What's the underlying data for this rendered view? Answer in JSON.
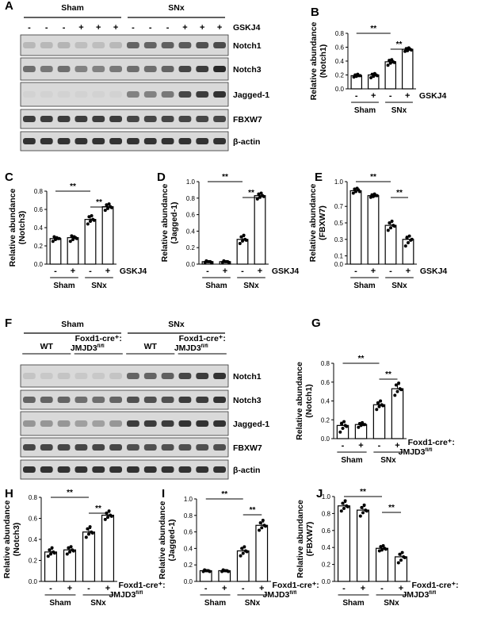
{
  "blot_panels": [
    {
      "letter": "A",
      "groups": [
        {
          "label": "Sham",
          "lanes": 6
        },
        {
          "label": "SNx",
          "lanes": 6
        }
      ],
      "treatment_row": {
        "signs": [
          "-",
          "-",
          "-",
          "+",
          "+",
          "+",
          "-",
          "-",
          "-",
          "+",
          "+",
          "+"
        ],
        "label": "GSKJ4"
      },
      "bands": [
        "Notch1",
        "Notch3",
        "Jagged-1",
        "FBXW7",
        "β-actin"
      ]
    },
    {
      "letter": "F",
      "groups": [
        {
          "label": "Sham",
          "lanes": 6
        },
        {
          "label": "SNx",
          "lanes": 6
        }
      ],
      "subgroups": [
        {
          "label": "WT"
        },
        {
          "label": "Foxd1-cre⁺:",
          "label2": "JMJD3",
          "sup": "fl/fl"
        },
        {
          "label": "WT"
        },
        {
          "label": "Foxd1-cre⁺:",
          "label2": "JMJD3",
          "sup": "fl/fl"
        }
      ],
      "bands": [
        "Notch1",
        "Notch3",
        "Jagged-1",
        "FBXW7",
        "β-actin"
      ]
    }
  ],
  "chart_data": [
    {
      "letter": "B",
      "type": "bar",
      "ylabel": "Relative abundance",
      "ylabel2": "(Notch1)",
      "ylim": [
        0,
        0.8
      ],
      "yticks": [
        "0.0",
        "0.2",
        "0.4",
        "0.6",
        "0.8"
      ],
      "categories": [
        "-",
        "+",
        "-",
        "+"
      ],
      "groups": [
        "Sham",
        "SNx"
      ],
      "treatment": {
        "label": "GSKJ4"
      },
      "values": [
        0.19,
        0.2,
        0.39,
        0.57
      ],
      "points": [
        [
          0.17,
          0.18,
          0.19,
          0.2,
          0.21,
          0.19
        ],
        [
          0.16,
          0.18,
          0.2,
          0.21,
          0.22,
          0.19
        ],
        [
          0.34,
          0.37,
          0.39,
          0.41,
          0.42,
          0.38
        ],
        [
          0.54,
          0.55,
          0.57,
          0.58,
          0.59,
          0.56
        ]
      ],
      "significance": [
        {
          "from": 0,
          "to": 2,
          "label": "**"
        },
        {
          "from": 2,
          "to": 3,
          "label": "**"
        }
      ]
    },
    {
      "letter": "C",
      "type": "bar",
      "ylabel": "Relative abundance",
      "ylabel2": "(Notch3)",
      "ylim": [
        0,
        0.8
      ],
      "yticks": [
        "0.0",
        "0.2",
        "0.4",
        "0.6",
        "0.8"
      ],
      "categories": [
        "-",
        "+",
        "-",
        "+"
      ],
      "groups": [
        "Sham",
        "SNx"
      ],
      "treatment": {
        "label": "GSKJ4"
      },
      "values": [
        0.28,
        0.29,
        0.49,
        0.63
      ],
      "points": [
        [
          0.25,
          0.27,
          0.28,
          0.3,
          0.29,
          0.28
        ],
        [
          0.25,
          0.27,
          0.29,
          0.31,
          0.3,
          0.28
        ],
        [
          0.44,
          0.47,
          0.49,
          0.52,
          0.53,
          0.48
        ],
        [
          0.59,
          0.61,
          0.63,
          0.65,
          0.66,
          0.62
        ]
      ],
      "significance": [
        {
          "from": 0,
          "to": 2,
          "label": "**"
        },
        {
          "from": 2,
          "to": 3,
          "label": "**"
        }
      ]
    },
    {
      "letter": "D",
      "type": "bar",
      "ylabel": "Relative abundance",
      "ylabel2": "(Jagged-1)",
      "ylim": [
        0,
        1.0
      ],
      "yticks": [
        "0.0",
        "0.2",
        "0.4",
        "0.6",
        "0.8",
        "1.0"
      ],
      "categories": [
        "-",
        "+",
        "-",
        "+"
      ],
      "groups": [
        "Sham",
        "SNx"
      ],
      "treatment": {
        "label": "GSKJ4"
      },
      "values": [
        0.03,
        0.03,
        0.3,
        0.83
      ],
      "points": [
        [
          0.02,
          0.03,
          0.03,
          0.04,
          0.03,
          0.02
        ],
        [
          0.02,
          0.03,
          0.03,
          0.04,
          0.03,
          0.02
        ],
        [
          0.25,
          0.28,
          0.3,
          0.33,
          0.35,
          0.29
        ],
        [
          0.79,
          0.81,
          0.83,
          0.85,
          0.86,
          0.82
        ]
      ],
      "significance": [
        {
          "from": 0,
          "to": 2,
          "label": "**"
        },
        {
          "from": 2,
          "to": 3,
          "label": "**"
        }
      ]
    },
    {
      "letter": "E",
      "type": "bar",
      "ylabel": "Relative abundance",
      "ylabel2": "(FBXW7)",
      "ylim": [
        0,
        1.0
      ],
      "yticks": [
        "0.0",
        "0.1",
        "0.3",
        "0.5",
        "0.7",
        "1.0"
      ],
      "yticks_values": [
        0,
        0.1,
        0.3,
        0.5,
        0.7,
        1.0
      ],
      "categories": [
        "-",
        "+",
        "-",
        "+"
      ],
      "groups": [
        "Sham",
        "SNx"
      ],
      "treatment": {
        "label": "GSKJ4"
      },
      "values": [
        0.89,
        0.83,
        0.47,
        0.3
      ],
      "points": [
        [
          0.86,
          0.88,
          0.9,
          0.91,
          0.92,
          0.88
        ],
        [
          0.81,
          0.82,
          0.83,
          0.84,
          0.85,
          0.83
        ],
        [
          0.41,
          0.44,
          0.47,
          0.5,
          0.52,
          0.46
        ],
        [
          0.22,
          0.26,
          0.29,
          0.32,
          0.34,
          0.3
        ]
      ],
      "significance": [
        {
          "from": 0,
          "to": 2,
          "label": "**"
        },
        {
          "from": 2,
          "to": 3,
          "label": "**"
        }
      ]
    },
    {
      "letter": "G",
      "type": "bar",
      "ylabel": "Relative abundance",
      "ylabel2": "(Notch1)",
      "ylim": [
        0,
        0.8
      ],
      "yticks": [
        "0.0",
        "0.2",
        "0.4",
        "0.6",
        "0.8"
      ],
      "categories": [
        "-",
        "+",
        "-",
        "+"
      ],
      "groups": [
        "Sham",
        "SNx"
      ],
      "treatment": {
        "label": "Foxd1-cre⁺:",
        "label2": "JMJD3",
        "sup": "fl/fl"
      },
      "values": [
        0.14,
        0.15,
        0.36,
        0.53
      ],
      "points": [
        [
          0.07,
          0.11,
          0.14,
          0.16,
          0.18,
          0.13
        ],
        [
          0.12,
          0.14,
          0.15,
          0.16,
          0.17,
          0.15
        ],
        [
          0.31,
          0.34,
          0.36,
          0.38,
          0.4,
          0.35
        ],
        [
          0.46,
          0.5,
          0.53,
          0.57,
          0.59,
          0.52
        ]
      ],
      "significance": [
        {
          "from": 0,
          "to": 2,
          "label": "**"
        },
        {
          "from": 2,
          "to": 3,
          "label": "**"
        }
      ]
    },
    {
      "letter": "H",
      "type": "bar",
      "ylabel": "Relative abundance",
      "ylabel2": "(Notch3)",
      "ylim": [
        0,
        0.8
      ],
      "yticks": [
        "0.0",
        "0.2",
        "0.4",
        "0.6",
        "0.8"
      ],
      "categories": [
        "-",
        "+",
        "-",
        "+"
      ],
      "groups": [
        "Sham",
        "SNx"
      ],
      "treatment": {
        "label": "Foxd1-cre⁺:",
        "label2": "JMJD3",
        "sup": "fl/fl"
      },
      "values": [
        0.28,
        0.3,
        0.47,
        0.63
      ],
      "points": [
        [
          0.24,
          0.26,
          0.28,
          0.3,
          0.32,
          0.27
        ],
        [
          0.26,
          0.28,
          0.3,
          0.32,
          0.33,
          0.29
        ],
        [
          0.42,
          0.45,
          0.47,
          0.5,
          0.52,
          0.46
        ],
        [
          0.59,
          0.61,
          0.63,
          0.65,
          0.67,
          0.62
        ]
      ],
      "significance": [
        {
          "from": 0,
          "to": 2,
          "label": "**"
        },
        {
          "from": 2,
          "to": 3,
          "label": "**"
        }
      ]
    },
    {
      "letter": "I",
      "type": "bar",
      "ylabel": "Relative abundance",
      "ylabel2": "(Jagged-1)",
      "ylim": [
        0,
        1.0
      ],
      "yticks": [
        "0.0",
        "0.2",
        "0.4",
        "0.6",
        "0.8",
        "1.0"
      ],
      "categories": [
        "-",
        "+",
        "-",
        "+"
      ],
      "groups": [
        "Sham",
        "SNx"
      ],
      "treatment": {
        "label": "Foxd1-cre⁺:",
        "label2": "JMJD3",
        "sup": "fl/fl"
      },
      "values": [
        0.13,
        0.13,
        0.37,
        0.68
      ],
      "points": [
        [
          0.12,
          0.13,
          0.13,
          0.14,
          0.13,
          0.12
        ],
        [
          0.12,
          0.13,
          0.13,
          0.14,
          0.13,
          0.12
        ],
        [
          0.31,
          0.34,
          0.37,
          0.4,
          0.42,
          0.36
        ],
        [
          0.62,
          0.65,
          0.68,
          0.71,
          0.74,
          0.67
        ]
      ],
      "significance": [
        {
          "from": 0,
          "to": 2,
          "label": "**"
        },
        {
          "from": 2,
          "to": 3,
          "label": "**"
        }
      ]
    },
    {
      "letter": "J",
      "type": "bar",
      "ylabel": "Relative abundance",
      "ylabel2": "(FBXW7)",
      "ylim": [
        0,
        1.0
      ],
      "yticks": [
        "0.0",
        "0.2",
        "0.4",
        "0.6",
        "0.8",
        "1.0"
      ],
      "categories": [
        "-",
        "+",
        "-",
        "+"
      ],
      "groups": [
        "Sham",
        "SNx"
      ],
      "treatment": {
        "label": "Foxd1-cre⁺:",
        "label2": "JMJD3",
        "sup": "fl/fl"
      },
      "values": [
        0.89,
        0.84,
        0.39,
        0.29
      ],
      "points": [
        [
          0.83,
          0.86,
          0.89,
          0.92,
          0.95,
          0.88
        ],
        [
          0.77,
          0.81,
          0.84,
          0.87,
          0.9,
          0.83
        ],
        [
          0.36,
          0.37,
          0.39,
          0.41,
          0.42,
          0.38
        ],
        [
          0.22,
          0.25,
          0.29,
          0.32,
          0.34,
          0.28
        ]
      ],
      "significance": [
        {
          "from": 0,
          "to": 2,
          "label": "**"
        },
        {
          "from": 2,
          "to": 3,
          "label": "**"
        }
      ]
    }
  ]
}
